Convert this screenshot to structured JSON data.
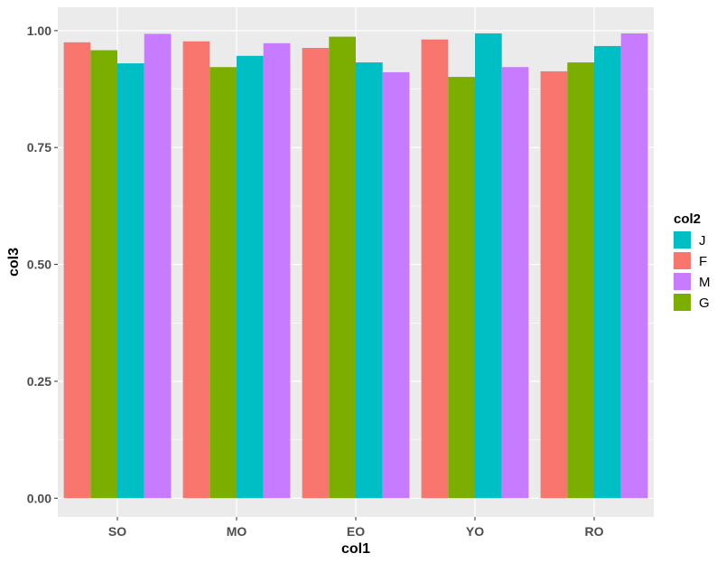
{
  "chart_data": {
    "type": "bar",
    "xlabel": "col1",
    "ylabel": "col3",
    "categories": [
      "SO",
      "MO",
      "EO",
      "YO",
      "RO"
    ],
    "ylim": [
      -0.04,
      1.05
    ],
    "y_ticks": [
      0.0,
      0.25,
      0.5,
      0.75,
      1.0
    ],
    "y_tick_labels": [
      "0.00",
      "0.25",
      "0.50",
      "0.75",
      "1.00"
    ],
    "grid": true,
    "background": "#ebebeb",
    "bar_order": [
      "F",
      "G",
      "J",
      "M"
    ],
    "series": [
      {
        "name": "F",
        "color": "#f8766d",
        "values": [
          0.975,
          0.977,
          0.963,
          0.981,
          0.913
        ]
      },
      {
        "name": "G",
        "color": "#7cae00",
        "values": [
          0.958,
          0.922,
          0.987,
          0.901,
          0.932
        ]
      },
      {
        "name": "J",
        "color": "#00bfc4",
        "values": [
          0.93,
          0.946,
          0.932,
          0.994,
          0.967
        ]
      },
      {
        "name": "M",
        "color": "#c77cff",
        "values": [
          0.993,
          0.973,
          0.911,
          0.922,
          0.994
        ]
      }
    ],
    "legend": {
      "title": "col2",
      "placement": "right",
      "order": [
        "J",
        "F",
        "M",
        "G"
      ]
    }
  }
}
